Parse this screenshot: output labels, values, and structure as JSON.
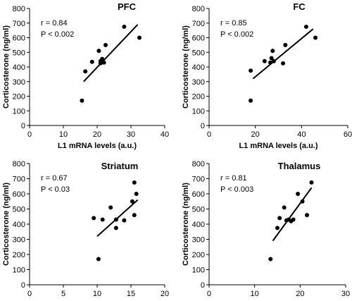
{
  "chart_data": [
    {
      "type": "scatter",
      "title": "PFC",
      "xlabel": "L1 mRNA levels (a.u.)",
      "ylabel": "Corticosterone (ng/ml)",
      "xlim": [
        0,
        40
      ],
      "ylim": [
        0,
        800
      ],
      "xticks": [
        "0",
        "10",
        "20",
        "30",
        "40"
      ],
      "yticks": [
        "0",
        "100",
        "200",
        "300",
        "400",
        "500",
        "600",
        "700",
        "800"
      ],
      "stats": [
        "r = 0.84",
        "P < 0.002"
      ],
      "x": [
        15.5,
        16.5,
        18.5,
        20.5,
        21,
        21,
        21.5,
        22,
        22.5,
        28,
        32.5
      ],
      "y": [
        170,
        370,
        435,
        510,
        440,
        425,
        455,
        430,
        550,
        675,
        600
      ],
      "fit": [
        [
          16,
          300
        ],
        [
          32,
          690
        ]
      ]
    },
    {
      "type": "scatter",
      "title": "FC",
      "xlabel": "L1 mRNA levels (a.u.)",
      "ylabel": "Corticosterone (ng/ml)",
      "xlim": [
        0,
        60
      ],
      "ylim": [
        0,
        800
      ],
      "xticks": [
        "0",
        "20",
        "40",
        "60"
      ],
      "yticks": [
        "0",
        "100",
        "200",
        "300",
        "400",
        "500",
        "600",
        "700",
        "800"
      ],
      "stats": [
        "r = 0.85",
        "P < 0.002"
      ],
      "x": [
        18,
        18,
        24,
        26.5,
        27,
        27.5,
        28,
        32,
        33,
        42,
        46
      ],
      "y": [
        170,
        375,
        440,
        430,
        460,
        510,
        440,
        425,
        550,
        675,
        600
      ],
      "fit": [
        [
          19,
          320
        ],
        [
          45,
          660
        ]
      ]
    },
    {
      "type": "scatter",
      "title": "Striatum",
      "xlabel": "L1 mRNA levels (a.u.)",
      "ylabel": "Corticosterone (ng/ml)",
      "xlim": [
        0,
        20
      ],
      "ylim": [
        0,
        800
      ],
      "xticks": [
        "0",
        "5",
        "10",
        "15",
        "20"
      ],
      "yticks": [
        "0",
        "100",
        "200",
        "300",
        "400",
        "500",
        "600",
        "700",
        "800"
      ],
      "stats": [
        "r = 0.67",
        "P < 0.03"
      ],
      "x": [
        9.5,
        10.2,
        10.8,
        12,
        12.8,
        12.8,
        14,
        15.2,
        15.5,
        15.5,
        15.8
      ],
      "y": [
        440,
        170,
        430,
        510,
        430,
        375,
        425,
        550,
        675,
        460,
        600
      ],
      "fit": [
        [
          10,
          320
        ],
        [
          16,
          560
        ]
      ]
    },
    {
      "type": "scatter",
      "title": "Thalamus",
      "xlabel": "L1 mRNA levels (a.u.)",
      "ylabel": "Corticosterone (ng/ml)",
      "xlim": [
        0,
        30
      ],
      "ylim": [
        0,
        800
      ],
      "xticks": [
        "0",
        "10",
        "20",
        "30"
      ],
      "yticks": [
        "0",
        "100",
        "200",
        "300",
        "400",
        "500",
        "600",
        "700",
        "800"
      ],
      "stats": [
        "r = 0.81",
        "P < 0.003"
      ],
      "x": [
        13.5,
        15,
        15.5,
        16.5,
        17,
        17.5,
        18,
        18.5,
        19.5,
        20.5,
        21.5,
        22.5
      ],
      "y": [
        170,
        375,
        440,
        510,
        425,
        430,
        420,
        430,
        600,
        550,
        460,
        675
      ],
      "fit": [
        [
          14,
          290
        ],
        [
          22.5,
          640
        ]
      ]
    }
  ]
}
